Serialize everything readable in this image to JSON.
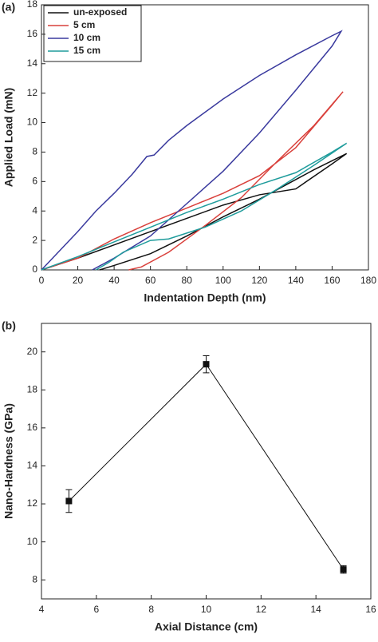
{
  "chart_data": [
    {
      "type": "line",
      "annotation": "(a)",
      "xlabel": "Indentation Depth (nm)",
      "ylabel": "Applied Load (mN)",
      "xlim": [
        0,
        180
      ],
      "ylim": [
        0,
        18
      ],
      "xticks": [
        0,
        20,
        40,
        60,
        80,
        100,
        120,
        140,
        160,
        180
      ],
      "yticks": [
        0,
        2,
        4,
        6,
        8,
        10,
        12,
        14,
        16,
        18
      ],
      "legend": "upper left",
      "series": [
        {
          "name": "un-exposed",
          "color": "#111111",
          "x": [
            0,
            20,
            40,
            60,
            80,
            100,
            120,
            140,
            160,
            168,
            150,
            120,
            100,
            80,
            60,
            40,
            32
          ],
          "values": [
            0,
            0.8,
            1.7,
            2.6,
            3.5,
            4.4,
            5.1,
            5.5,
            7.2,
            7.9,
            6.8,
            4.8,
            3.6,
            2.3,
            1.1,
            0.3,
            0
          ]
        },
        {
          "name": "5 cm",
          "color": "#d9403b",
          "x": [
            0,
            20,
            40,
            60,
            80,
            100,
            120,
            140,
            160,
            166,
            150,
            130,
            110,
            90,
            70,
            55,
            48
          ],
          "values": [
            0,
            0.8,
            2.1,
            3.2,
            4.2,
            5.2,
            6.4,
            8.3,
            11.2,
            12.1,
            9.8,
            7.4,
            4.9,
            3.0,
            1.2,
            0.2,
            0
          ]
        },
        {
          "name": "10 cm",
          "color": "#3a3a9e",
          "x": [
            0,
            10,
            20,
            30,
            40,
            50,
            58,
            62,
            70,
            80,
            100,
            120,
            140,
            160,
            165,
            160,
            140,
            120,
            100,
            80,
            60,
            40,
            28
          ],
          "values": [
            0,
            1.3,
            2.6,
            4.0,
            5.2,
            6.5,
            7.7,
            7.8,
            8.8,
            9.8,
            11.6,
            13.2,
            14.6,
            15.9,
            16.2,
            15.2,
            12.2,
            9.3,
            6.7,
            4.5,
            2.3,
            0.8,
            0
          ]
        },
        {
          "name": "15 cm",
          "color": "#1f9c9c",
          "x": [
            0,
            20,
            40,
            60,
            80,
            100,
            120,
            140,
            160,
            168,
            150,
            130,
            110,
            90,
            70,
            60,
            45,
            37,
            30
          ],
          "values": [
            0,
            0.9,
            1.9,
            2.9,
            3.9,
            4.8,
            5.8,
            6.6,
            8.0,
            8.6,
            7.1,
            5.5,
            4.0,
            2.9,
            2.1,
            2.0,
            1.2,
            0.5,
            0
          ]
        }
      ]
    },
    {
      "type": "errorline",
      "annotation": "(b)",
      "xlabel": "Axial Distance (cm)",
      "ylabel": "Nano-Hardness (GPa)",
      "xlim": [
        4,
        16
      ],
      "ylim": [
        7,
        21.5
      ],
      "xticks": [
        4,
        6,
        8,
        10,
        12,
        14,
        16
      ],
      "yticks": [
        8,
        10,
        12,
        14,
        16,
        18,
        20
      ],
      "color": "#111111",
      "x": [
        5,
        10,
        15
      ],
      "values": [
        12.15,
        19.35,
        8.55
      ],
      "errors": [
        0.6,
        0.45,
        0.2
      ]
    }
  ]
}
